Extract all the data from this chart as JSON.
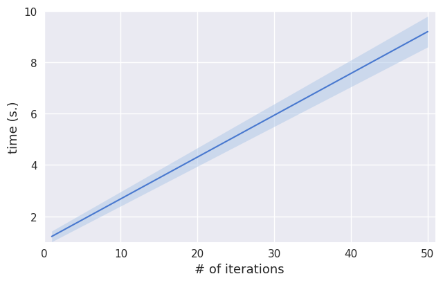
{
  "x_start": 1,
  "x_end": 50,
  "n_points": 300,
  "slope": 0.163,
  "intercept": 1.05,
  "ci_lower_slope": 0.155,
  "ci_lower_intercept": 0.85,
  "ci_upper_slope": 0.171,
  "ci_upper_intercept": 1.25,
  "line_color": "#4878cf",
  "band_color": "#aec7e8",
  "band_alpha": 0.5,
  "xlabel": "# of iterations",
  "ylabel": "time (s.)",
  "xlim": [
    0,
    51
  ],
  "ylim": [
    1,
    10
  ],
  "xticks": [
    0,
    10,
    20,
    30,
    40,
    50
  ],
  "yticks": [
    2,
    4,
    6,
    8,
    10
  ],
  "linewidth": 1.5,
  "figsize": [
    6.4,
    4.1
  ],
  "dpi": 100,
  "bg_color": "#e8ecf4",
  "grid_color": "white",
  "xlabel_fontsize": 13,
  "ylabel_fontsize": 13,
  "tick_fontsize": 11
}
